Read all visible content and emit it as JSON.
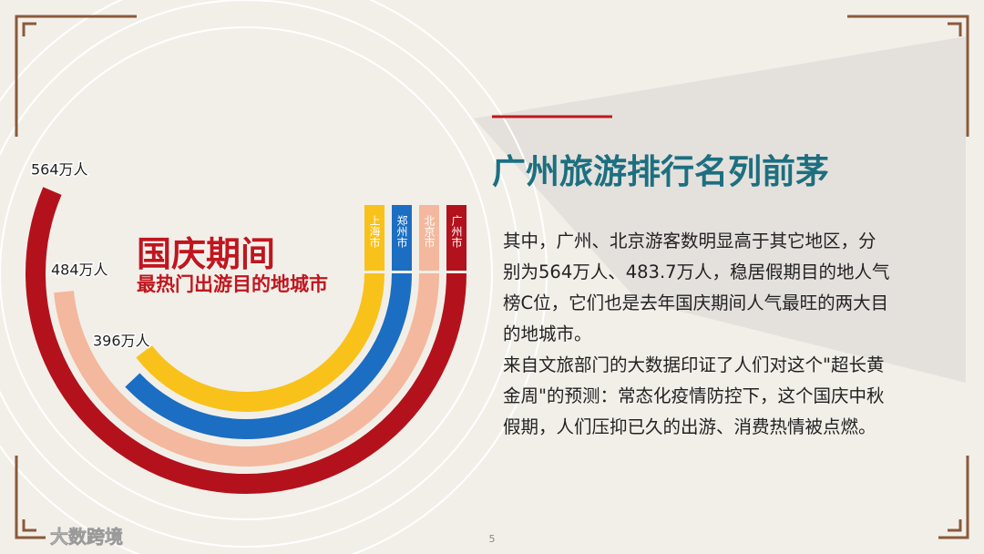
{
  "title_big": "国庆期间",
  "subtitle": "最热门出游目的地城市",
  "heading": "广州旅游排行名列前茅",
  "paragraphs": [
    "其中，广州、北京游客数明显高于其它地区，分别为564万人、483.7万人，稳居假期目的地人气榜C位，它们也是去年国庆期间人气最旺的两大目的地城市。",
    "来自文旅部门的大数据印证了人们对这个\"超长黄金周\"的预测：常态化疫情防控下，这个国庆中秋假期，人们压抑已久的出游、消费热情被点燃。"
  ],
  "page_number": 5,
  "watermark": "大数跨境",
  "chart_data": {
    "type": "radial_bar",
    "categories": [
      "广州市",
      "北京市",
      "郑州市",
      "上海市"
    ],
    "values": [
      564,
      484,
      380,
      396
    ],
    "value_labels": [
      "564万人",
      "484万人",
      null,
      "396万人"
    ],
    "colors": [
      "#b3121c",
      "#f3b89d",
      "#1b6ec2",
      "#f8c21b"
    ]
  }
}
